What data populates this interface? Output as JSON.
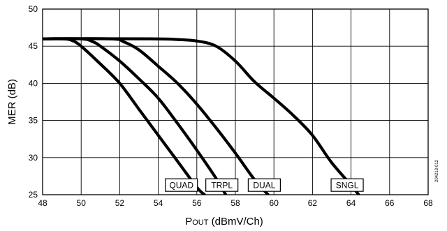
{
  "chart_data": {
    "type": "line",
    "xlabel_main": "P",
    "xlabel_sub": "OUT",
    "xlabel_rest": " (dBmV/Ch)",
    "ylabel": "MER (dB)",
    "xlim": [
      48,
      68
    ],
    "ylim": [
      25,
      50
    ],
    "x_ticks": [
      "48",
      "50",
      "52",
      "54",
      "56",
      "58",
      "60",
      "62",
      "64",
      "66",
      "68"
    ],
    "y_ticks": [
      "25",
      "30",
      "35",
      "40",
      "45",
      "50"
    ],
    "grid": true,
    "line_color": "#000000",
    "series": [
      {
        "name": "QUAD",
        "points": [
          [
            48,
            46.0
          ],
          [
            49,
            46.0
          ],
          [
            49.5,
            45.8
          ],
          [
            50,
            45.0
          ],
          [
            51,
            42.6
          ],
          [
            52,
            40.0
          ],
          [
            53,
            36.5
          ],
          [
            54,
            33.0
          ],
          [
            55,
            29.5
          ],
          [
            56,
            26.0
          ],
          [
            56.4,
            25.0
          ]
        ]
      },
      {
        "name": "TRPL",
        "points": [
          [
            48,
            46.0
          ],
          [
            50,
            46.0
          ],
          [
            50.6,
            45.6
          ],
          [
            51,
            45.0
          ],
          [
            52,
            43.0
          ],
          [
            53,
            40.6
          ],
          [
            54,
            38.0
          ],
          [
            55,
            34.6
          ],
          [
            56,
            31.0
          ],
          [
            57,
            27.2
          ],
          [
            57.5,
            25.0
          ]
        ]
      },
      {
        "name": "DUAL",
        "points": [
          [
            48,
            46.0
          ],
          [
            51.5,
            46.0
          ],
          [
            52.2,
            45.6
          ],
          [
            53,
            44.5
          ],
          [
            54,
            42.3
          ],
          [
            55,
            40.0
          ],
          [
            56,
            37.2
          ],
          [
            57,
            34.0
          ],
          [
            58,
            30.6
          ],
          [
            59,
            27.0
          ],
          [
            59.7,
            25.0
          ]
        ]
      },
      {
        "name": "SNGL",
        "points": [
          [
            48,
            46.0
          ],
          [
            53.5,
            46.0
          ],
          [
            55,
            45.9
          ],
          [
            56,
            45.7
          ],
          [
            57,
            45.0
          ],
          [
            58,
            43.0
          ],
          [
            59,
            40.2
          ],
          [
            60,
            38.0
          ],
          [
            61,
            35.7
          ],
          [
            62,
            33.0
          ],
          [
            63,
            29.3
          ],
          [
            64,
            26.3
          ],
          [
            64.4,
            25.0
          ]
        ]
      }
    ],
    "labels": [
      {
        "text": "QUAD",
        "x": 55.2,
        "y": 26.3
      },
      {
        "text": "TRPL",
        "x": 57.3,
        "y": 26.3
      },
      {
        "text": "DUAL",
        "x": 59.5,
        "y": 26.3
      },
      {
        "text": "SNGL",
        "x": 63.8,
        "y": 26.3
      }
    ],
    "code": "204213-012"
  }
}
